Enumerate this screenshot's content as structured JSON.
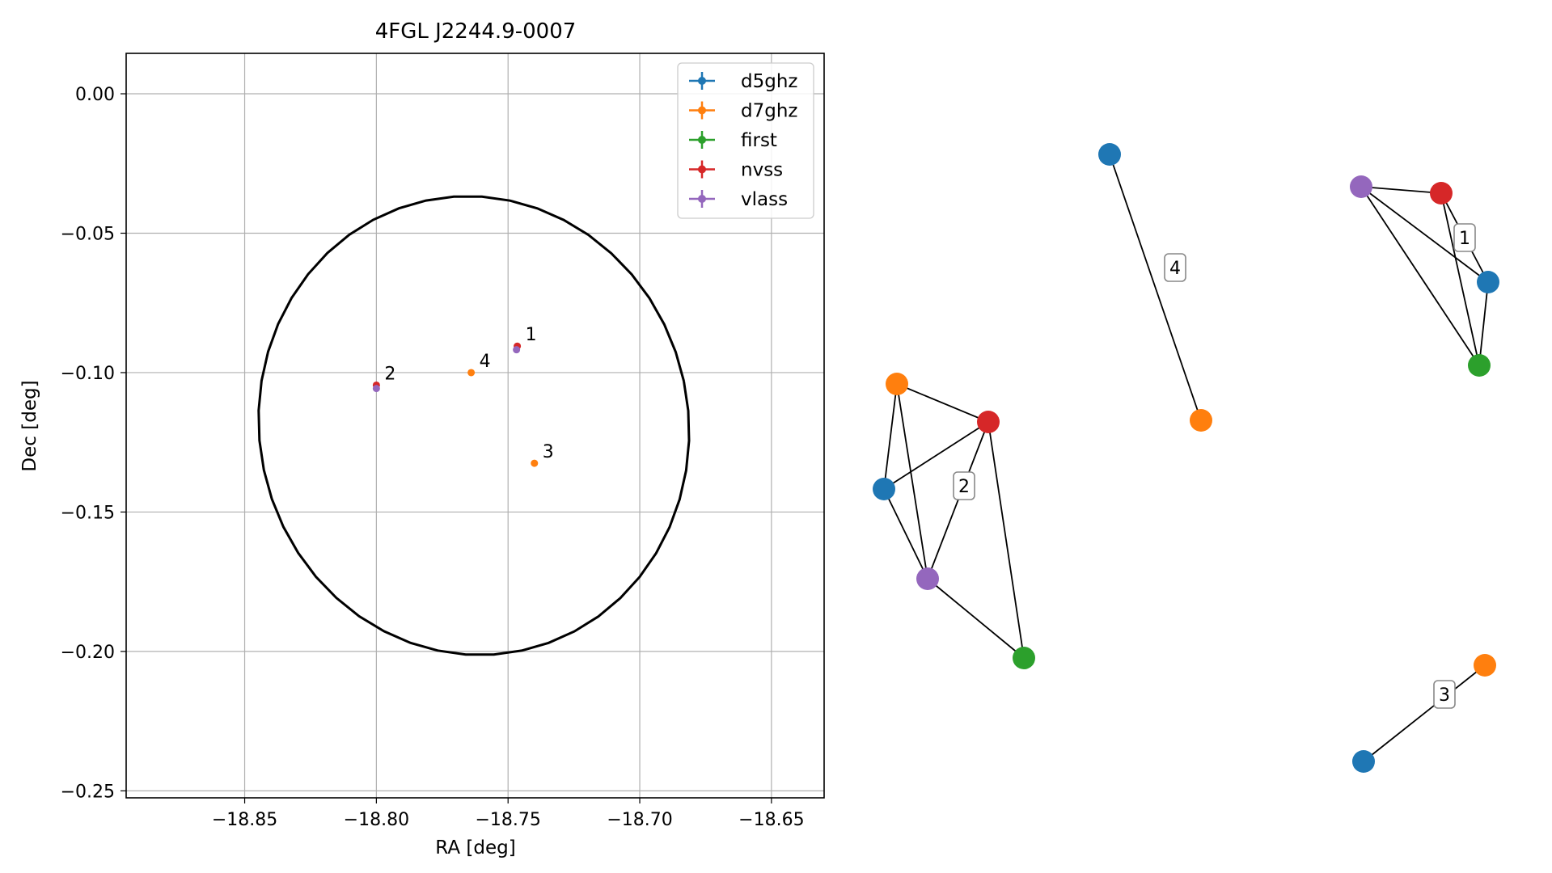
{
  "chart_data": [
    {
      "type": "scatter",
      "title": "4FGL J2244.9-0007",
      "xlabel": "RA [deg]",
      "ylabel": "Dec [deg]",
      "xlim": [
        -18.895,
        -18.63
      ],
      "ylim": [
        -0.2525,
        0.0145
      ],
      "x_ticks": [
        -18.85,
        -18.8,
        -18.75,
        -18.7,
        -18.65
      ],
      "x_tick_labels": [
        "−18.85",
        "−18.80",
        "−18.75",
        "−18.70",
        "−18.65"
      ],
      "y_ticks": [
        0.0,
        -0.05,
        -0.1,
        -0.15,
        -0.2,
        -0.25
      ],
      "y_tick_labels": [
        "0.00",
        "−0.05",
        "−0.10",
        "−0.15",
        "−0.20",
        "−0.25"
      ],
      "grid": true,
      "legend_position": "top-right",
      "series": [
        {
          "name": "d5ghz",
          "color": "#1f77b4",
          "points": []
        },
        {
          "name": "d7ghz",
          "color": "#ff7f0e",
          "points": [
            [
              -18.764,
              -0.1
            ],
            [
              -18.74,
              -0.1325
            ]
          ]
        },
        {
          "name": "first",
          "color": "#2ca02c",
          "points": []
        },
        {
          "name": "nvss",
          "color": "#d62728",
          "points": [
            [
              -18.8,
              -0.1045
            ],
            [
              -18.7465,
              -0.0905
            ]
          ]
        },
        {
          "name": "vlass",
          "color": "#9467bd",
          "points": [
            [
              -18.8,
              -0.1057
            ],
            [
              -18.7468,
              -0.0918
            ]
          ]
        }
      ],
      "labels": [
        {
          "text": "1",
          "x": -18.7465,
          "y": -0.0905
        },
        {
          "text": "2",
          "x": -18.8,
          "y": -0.1045
        },
        {
          "text": "3",
          "x": -18.74,
          "y": -0.1325
        },
        {
          "text": "4",
          "x": -18.764,
          "y": -0.1
        }
      ],
      "ellipse": {
        "center": [
          -18.763,
          -0.119
        ],
        "semi_axis_ra": 0.0815,
        "semi_axis_dec": 0.0825,
        "rotation_deg": -12,
        "color": "#000000"
      }
    },
    {
      "type": "network",
      "colors": {
        "d5ghz": "#1f77b4",
        "d7ghz": "#ff7f0e",
        "first": "#2ca02c",
        "nvss": "#d62728",
        "vlass": "#9467bd"
      },
      "groups": [
        {
          "label": "1",
          "nodes": [
            "vlass",
            "nvss",
            "d5ghz",
            "first"
          ],
          "edges": [
            [
              "vlass",
              "nvss"
            ],
            [
              "vlass",
              "d5ghz"
            ],
            [
              "vlass",
              "first"
            ],
            [
              "nvss",
              "d5ghz"
            ],
            [
              "nvss",
              "first"
            ],
            [
              "d5ghz",
              "first"
            ]
          ]
        },
        {
          "label": "2",
          "nodes": [
            "d7ghz",
            "nvss",
            "d5ghz",
            "vlass",
            "first"
          ],
          "edges": [
            [
              "d7ghz",
              "nvss"
            ],
            [
              "d7ghz",
              "d5ghz"
            ],
            [
              "d7ghz",
              "vlass"
            ],
            [
              "nvss",
              "d5ghz"
            ],
            [
              "nvss",
              "vlass"
            ],
            [
              "nvss",
              "first"
            ],
            [
              "d5ghz",
              "vlass"
            ],
            [
              "vlass",
              "first"
            ]
          ]
        },
        {
          "label": "3",
          "nodes": [
            "d7ghz",
            "d5ghz"
          ],
          "edges": [
            [
              "d7ghz",
              "d5ghz"
            ]
          ]
        },
        {
          "label": "4",
          "nodes": [
            "d5ghz",
            "d7ghz"
          ],
          "edges": [
            [
              "d5ghz",
              "d7ghz"
            ]
          ]
        }
      ]
    }
  ]
}
